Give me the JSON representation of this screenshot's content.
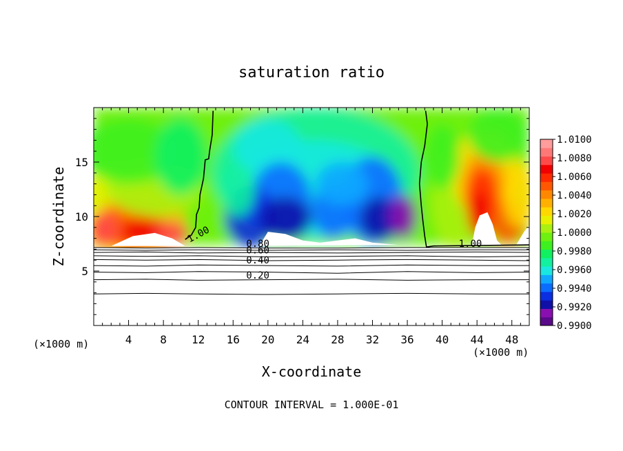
{
  "chart_data": {
    "type": "heatmap",
    "title": "saturation ratio",
    "xlabel": "X-coordinate",
    "ylabel": "Z-coordinate",
    "x_unit_left": "(×1000 m)",
    "x_unit_right": "(×1000 m)",
    "xlim": [
      0,
      50
    ],
    "ylim": [
      0,
      20
    ],
    "x_ticks": [
      4,
      8,
      12,
      16,
      20,
      24,
      28,
      32,
      36,
      40,
      44,
      48
    ],
    "y_ticks": [
      5,
      10,
      15
    ],
    "footer": "CONTOUR INTERVAL = 1.000E-01",
    "colorbar": {
      "range": [
        0.99,
        1.01
      ],
      "labels": [
        "1.0100",
        "1.0080",
        "1.0060",
        "1.0040",
        "1.0020",
        "1.0000",
        "0.9980",
        "0.9960",
        "0.9940",
        "0.9920",
        "0.9900"
      ],
      "colors": [
        "#5a0a8a",
        "#8a0fb0",
        "#1010a8",
        "#0a2ee0",
        "#0a6dff",
        "#10a8ff",
        "#1ae8e0",
        "#12f0a0",
        "#10f060",
        "#3ef020",
        "#6ef010",
        "#aaf010",
        "#e8f000",
        "#ffd800",
        "#ffb000",
        "#ff8800",
        "#ff5800",
        "#ff2a00",
        "#f00000",
        "#ff4a4a",
        "#ff7878",
        "#ff9c9c"
      ]
    },
    "contour_labels": [
      {
        "text": "1.00",
        "x": 11.0,
        "z": 7.6
      },
      {
        "text": "1.00",
        "x": 41.9,
        "z": 7.2
      },
      {
        "text": "0.80",
        "x": 17.5,
        "z": 7.2
      },
      {
        "text": "0.60",
        "x": 17.5,
        "z": 6.6
      },
      {
        "text": "0.40",
        "x": 17.5,
        "z": 5.7
      },
      {
        "text": "0.20",
        "x": 17.5,
        "z": 4.3
      }
    ],
    "contours": [
      {
        "level": 1.0,
        "points": [
          [
            13.7,
            19.7
          ],
          [
            13.6,
            17.5
          ],
          [
            13.3,
            16.0
          ],
          [
            13.2,
            15.3
          ],
          [
            12.8,
            15.2
          ],
          [
            12.6,
            13.5
          ],
          [
            12.2,
            12.0
          ],
          [
            12.1,
            10.8
          ],
          [
            11.8,
            10.2
          ],
          [
            11.7,
            9.0
          ],
          [
            11.2,
            8.3
          ],
          [
            10.5,
            7.9
          ]
        ]
      },
      {
        "level": 1.0,
        "points": [
          [
            38.1,
            19.7
          ],
          [
            38.3,
            18.5
          ],
          [
            38.0,
            16.5
          ],
          [
            37.6,
            15.0
          ],
          [
            37.4,
            13.0
          ],
          [
            37.6,
            11.0
          ],
          [
            37.8,
            9.5
          ],
          [
            38.0,
            8.2
          ],
          [
            38.2,
            7.2
          ],
          [
            39.0,
            7.3
          ],
          [
            50,
            7.4
          ]
        ]
      },
      {
        "level": 0.9,
        "points": [
          [
            0.0,
            7.15
          ],
          [
            6,
            7.1
          ],
          [
            12,
            7.15
          ],
          [
            20,
            7.1
          ],
          [
            28,
            7.1
          ],
          [
            36,
            7.15
          ],
          [
            44,
            7.15
          ],
          [
            50,
            7.15
          ]
        ]
      },
      {
        "level": 0.8,
        "points": [
          [
            0.0,
            6.95
          ],
          [
            6,
            6.9
          ],
          [
            12,
            6.95
          ],
          [
            20,
            6.9
          ],
          [
            28,
            6.95
          ],
          [
            36,
            6.9
          ],
          [
            44,
            6.95
          ],
          [
            50,
            6.95
          ]
        ]
      },
      {
        "level": 0.7,
        "points": [
          [
            0.0,
            6.7
          ],
          [
            6,
            6.75
          ],
          [
            12,
            6.65
          ],
          [
            20,
            6.7
          ],
          [
            28,
            6.65
          ],
          [
            36,
            6.7
          ],
          [
            44,
            6.75
          ],
          [
            50,
            6.7
          ]
        ]
      },
      {
        "level": 0.6,
        "points": [
          [
            0.0,
            6.4
          ],
          [
            6,
            6.35
          ],
          [
            12,
            6.4
          ],
          [
            20,
            6.3
          ],
          [
            28,
            6.35
          ],
          [
            36,
            6.4
          ],
          [
            44,
            6.3
          ],
          [
            50,
            6.35
          ]
        ]
      },
      {
        "level": 0.5,
        "points": [
          [
            0.0,
            6.05
          ],
          [
            6,
            6.0
          ],
          [
            12,
            6.05
          ],
          [
            20,
            5.95
          ],
          [
            28,
            6.0
          ],
          [
            36,
            6.05
          ],
          [
            44,
            6.0
          ],
          [
            50,
            5.95
          ]
        ]
      },
      {
        "level": 0.4,
        "points": [
          [
            0.0,
            5.5
          ],
          [
            6,
            5.45
          ],
          [
            12,
            5.55
          ],
          [
            20,
            5.5
          ],
          [
            28,
            5.45
          ],
          [
            36,
            5.55
          ],
          [
            44,
            5.5
          ],
          [
            50,
            5.5
          ]
        ]
      },
      {
        "level": 0.3,
        "points": [
          [
            0.0,
            4.9
          ],
          [
            6,
            4.85
          ],
          [
            12,
            4.95
          ],
          [
            20,
            4.9
          ],
          [
            28,
            4.8
          ],
          [
            36,
            4.95
          ],
          [
            44,
            4.85
          ],
          [
            50,
            4.9
          ]
        ]
      },
      {
        "level": 0.2,
        "points": [
          [
            0.0,
            4.2
          ],
          [
            6,
            4.25
          ],
          [
            12,
            4.15
          ],
          [
            20,
            4.2
          ],
          [
            28,
            4.25
          ],
          [
            36,
            4.15
          ],
          [
            44,
            4.2
          ],
          [
            50,
            4.2
          ]
        ]
      },
      {
        "level": 0.1,
        "points": [
          [
            0.0,
            2.9
          ],
          [
            6,
            2.95
          ],
          [
            12,
            2.9
          ],
          [
            20,
            2.85
          ],
          [
            28,
            2.9
          ],
          [
            36,
            2.95
          ],
          [
            44,
            2.9
          ],
          [
            50,
            2.9
          ]
        ]
      }
    ]
  }
}
